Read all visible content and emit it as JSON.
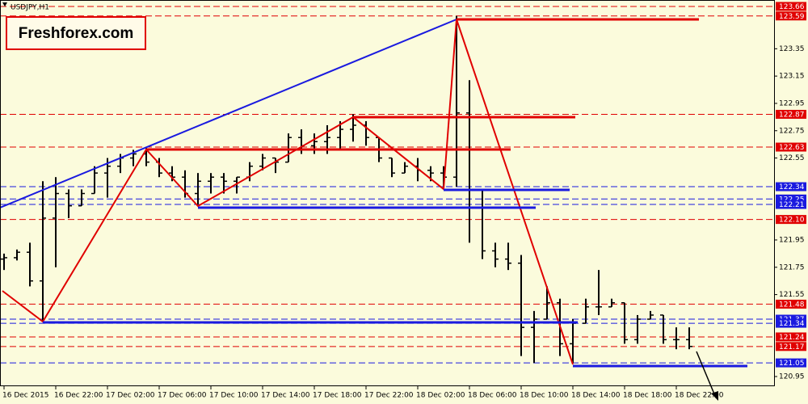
{
  "chart_data": {
    "type": "ohlc",
    "title": "USDJPY,H1",
    "watermark": "Freshforex.com",
    "categories": [
      "16 Dec 2015",
      null,
      null,
      null,
      "16 Dec 22:00",
      null,
      null,
      null,
      "17 Dec 02:00",
      null,
      null,
      null,
      "17 Dec 06:00",
      null,
      null,
      null,
      "17 Dec 10:00",
      null,
      null,
      null,
      "17 Dec 14:00",
      null,
      null,
      null,
      "17 Dec 18:00",
      null,
      null,
      null,
      "17 Dec 22:00",
      null,
      null,
      null,
      "18 Dec 02:00",
      null,
      null,
      null,
      "18 Dec 06:00",
      null,
      null,
      null,
      "18 Dec 10:00",
      null,
      null,
      null,
      "18 Dec 14:00",
      null,
      null,
      null,
      "18 Dec 18:00",
      null,
      null,
      null,
      "18 Dec 22:00",
      null
    ],
    "series": [
      {
        "color": "#000000",
        "open": [
          121.81,
          121.82,
          121.86,
          121.65,
          122.11,
          122.29,
          122.2,
          122.29,
          122.44,
          122.49,
          122.55,
          122.58,
          122.52,
          122.44,
          122.41,
          122.29,
          122.38,
          122.41,
          122.38,
          122.41,
          122.49,
          122.55,
          122.52,
          122.7,
          122.64,
          122.67,
          122.7,
          122.76,
          122.79,
          122.7,
          122.55,
          122.44,
          122.49,
          122.46,
          122.44,
          122.41,
          122.88,
          122.32,
          121.87,
          121.81,
          121.78,
          121.31,
          121.37,
          121.49,
          121.19,
          121.34,
          121.46,
          121.46,
          121.49,
          121.22,
          121.37,
          121.4,
          121.22,
          121.22
        ],
        "high": [
          121.85,
          121.88,
          121.93,
          122.38,
          122.41,
          122.32,
          122.32,
          122.49,
          122.55,
          122.58,
          122.61,
          122.63,
          122.55,
          122.49,
          122.46,
          122.44,
          122.44,
          122.44,
          122.41,
          122.52,
          122.58,
          122.55,
          122.73,
          122.76,
          122.73,
          122.79,
          122.82,
          122.87,
          122.82,
          122.7,
          122.55,
          122.52,
          122.55,
          122.49,
          122.49,
          123.59,
          123.12,
          122.32,
          121.93,
          121.93,
          121.84,
          121.43,
          121.61,
          121.52,
          121.37,
          121.52,
          121.73,
          121.52,
          121.49,
          121.4,
          121.43,
          121.4,
          121.31,
          121.31
        ],
        "low": [
          121.73,
          121.8,
          121.61,
          121.35,
          121.75,
          122.11,
          122.2,
          122.29,
          122.26,
          122.44,
          122.49,
          122.49,
          122.41,
          122.38,
          122.26,
          122.21,
          122.29,
          122.29,
          122.29,
          122.38,
          122.46,
          122.44,
          122.52,
          122.58,
          122.58,
          122.58,
          122.61,
          122.67,
          122.64,
          122.52,
          122.41,
          122.44,
          122.38,
          122.38,
          122.34,
          122.34,
          121.93,
          121.81,
          121.75,
          121.73,
          121.1,
          121.05,
          121.37,
          121.1,
          121.05,
          121.34,
          121.4,
          121.46,
          121.19,
          121.19,
          121.37,
          121.19,
          121.15,
          121.15
        ],
        "close": [
          121.82,
          121.86,
          121.65,
          122.11,
          122.29,
          122.2,
          122.29,
          122.44,
          122.49,
          122.55,
          122.58,
          122.52,
          122.44,
          122.41,
          122.29,
          122.38,
          122.41,
          122.38,
          122.41,
          122.49,
          122.55,
          122.52,
          122.7,
          122.64,
          122.67,
          122.7,
          122.76,
          122.79,
          122.7,
          122.55,
          122.44,
          122.49,
          122.46,
          122.44,
          122.41,
          122.88,
          122.32,
          121.87,
          121.81,
          121.78,
          121.31,
          121.37,
          121.49,
          121.19,
          121.34,
          121.46,
          121.46,
          121.49,
          121.22,
          121.37,
          121.4,
          121.22,
          121.22,
          121.17
        ]
      }
    ],
    "ylim": [
      120.879,
      123.707
    ],
    "yticks": [
      123.35,
      123.15,
      122.95,
      122.75,
      122.55,
      121.95,
      121.75,
      121.55,
      120.95
    ],
    "levels": [
      {
        "value": 123.66,
        "color": "#e00000"
      },
      {
        "value": 123.59,
        "color": "#e00000"
      },
      {
        "value": 122.87,
        "color": "#e00000"
      },
      {
        "value": 122.63,
        "color": "#e00000"
      },
      {
        "value": 122.34,
        "color": "#1a1adf"
      },
      {
        "value": 122.25,
        "color": "#1a1adf"
      },
      {
        "value": 122.21,
        "color": "#1a1adf"
      },
      {
        "value": 122.1,
        "label": "122.10",
        "color": "#e00000"
      },
      {
        "value": 121.48,
        "color": "#e00000"
      },
      {
        "value": 121.37,
        "color": "#1a1adf"
      },
      {
        "value": 121.34,
        "color": "#1a1adf"
      },
      {
        "value": 121.24,
        "color": "#e00000"
      },
      {
        "value": 121.17,
        "color": "#e00000"
      },
      {
        "value": 121.05,
        "color": "#1a1adf"
      }
    ]
  }
}
